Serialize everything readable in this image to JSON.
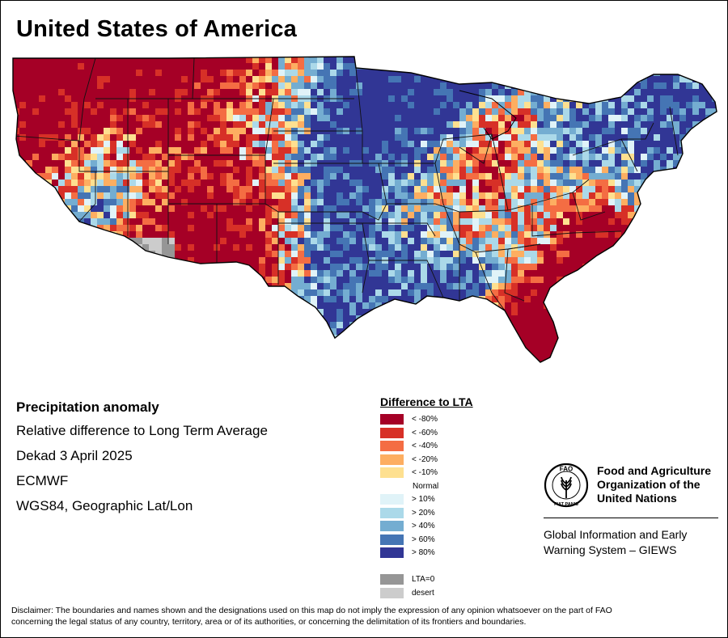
{
  "title": "United States of America",
  "info": {
    "variable": "Precipitation anomaly",
    "description": "Relative difference to Long Term Average",
    "period": "Dekad 3 April 2025",
    "source": "ECMWF",
    "projection": "WGS84, Geographic Lat/Lon"
  },
  "legend": {
    "title": "Difference to LTA",
    "items": [
      {
        "label": "< -80%",
        "color": "#a50026"
      },
      {
        "label": "< -60%",
        "color": "#d73027"
      },
      {
        "label": "< -40%",
        "color": "#f46d43"
      },
      {
        "label": "< -20%",
        "color": "#fdae61"
      },
      {
        "label": "< -10%",
        "color": "#fee090"
      },
      {
        "label": "Normal",
        "color": ""
      },
      {
        "label": "> 10%",
        "color": "#e0f3f8"
      },
      {
        "label": "> 20%",
        "color": "#abd9e9"
      },
      {
        "label": "> 40%",
        "color": "#74add1"
      },
      {
        "label": "> 60%",
        "color": "#4575b4"
      },
      {
        "label": "> 80%",
        "color": "#313695"
      },
      {
        "label": "",
        "color": ""
      },
      {
        "label": "LTA=0",
        "color": "#969696"
      },
      {
        "label": "desert",
        "color": "#cccccc"
      }
    ]
  },
  "fao": {
    "name_line1": "Food and Agriculture",
    "name_line2": "Organization of the",
    "name_line3": "United Nations",
    "sub_line1": "Global Information and Early",
    "sub_line2": "Warning System – GIEWS",
    "logo_text": "FAO",
    "logo_motto": "FIAT PANIS"
  },
  "disclaimer_line1": "Disclaimer: The boundaries and names shown and the designations used on this map do not imply the expression of any opinion whatsoever on the part of FAO",
  "disclaimer_line2": "concerning the legal status of any country, territory, area or of its authorities, or concerning the delimitation of its frontiers and boundaries."
}
